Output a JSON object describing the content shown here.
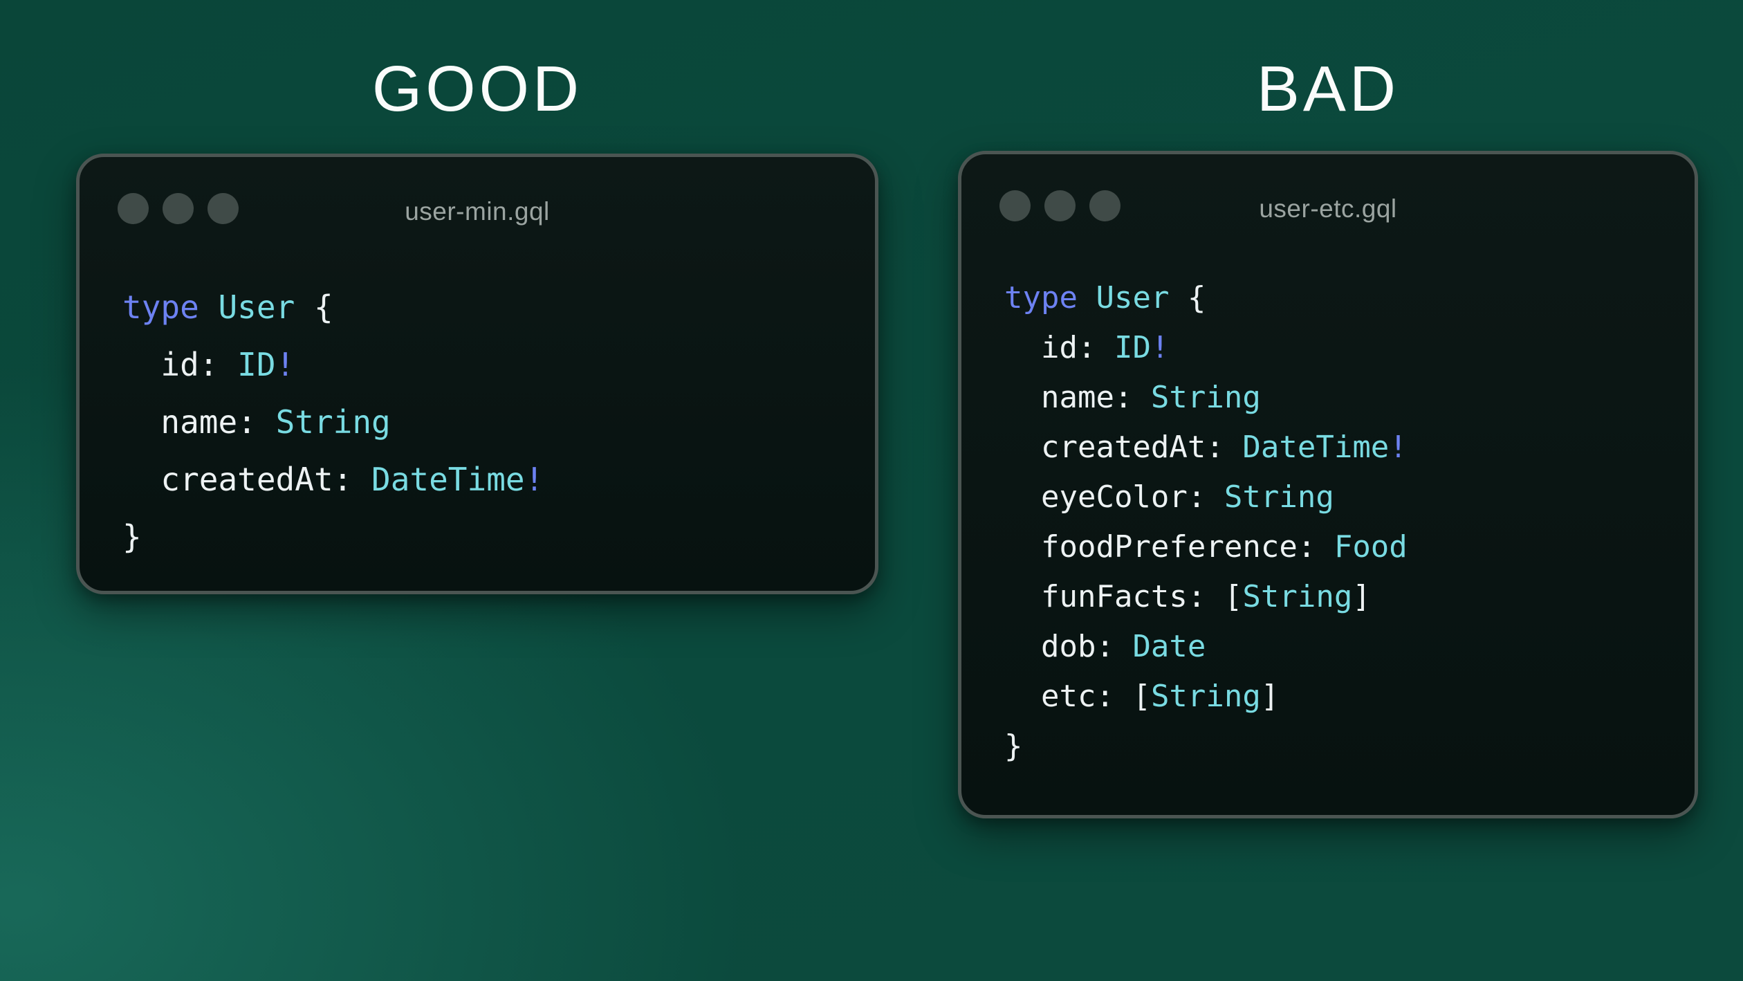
{
  "panels": [
    {
      "heading": "GOOD",
      "window": {
        "title": "user-min.gql",
        "code_lines": [
          [
            [
              "keyword",
              "type"
            ],
            [
              "plain",
              " "
            ],
            [
              "type_name",
              "User"
            ],
            [
              "plain",
              " {"
            ]
          ],
          [
            [
              "plain",
              "  id: "
            ],
            [
              "type_name",
              "ID"
            ],
            [
              "bang",
              "!"
            ]
          ],
          [
            [
              "plain",
              "  name: "
            ],
            [
              "type_name",
              "String"
            ]
          ],
          [
            [
              "plain",
              "  createdAt: "
            ],
            [
              "type_name",
              "DateTime"
            ],
            [
              "bang",
              "!"
            ]
          ],
          [
            [
              "plain",
              "}"
            ]
          ]
        ]
      }
    },
    {
      "heading": "BAD",
      "window": {
        "title": "user-etc.gql",
        "code_lines": [
          [
            [
              "keyword",
              "type"
            ],
            [
              "plain",
              " "
            ],
            [
              "type_name",
              "User"
            ],
            [
              "plain",
              " {"
            ]
          ],
          [
            [
              "plain",
              "  id: "
            ],
            [
              "type_name",
              "ID"
            ],
            [
              "bang",
              "!"
            ]
          ],
          [
            [
              "plain",
              "  name: "
            ],
            [
              "type_name",
              "String"
            ]
          ],
          [
            [
              "plain",
              "  createdAt: "
            ],
            [
              "type_name",
              "DateTime"
            ],
            [
              "bang",
              "!"
            ]
          ],
          [
            [
              "plain",
              "  eyeColor: "
            ],
            [
              "type_name",
              "String"
            ]
          ],
          [
            [
              "plain",
              "  foodPreference: "
            ],
            [
              "type_name",
              "Food"
            ]
          ],
          [
            [
              "plain",
              "  funFacts: "
            ],
            [
              "plain",
              "["
            ],
            [
              "type_name",
              "String"
            ],
            [
              "plain",
              "]"
            ]
          ],
          [
            [
              "plain",
              "  dob: "
            ],
            [
              "type_name",
              "Date"
            ]
          ],
          [
            [
              "plain",
              "  etc: "
            ],
            [
              "plain",
              "["
            ],
            [
              "type_name",
              "String"
            ],
            [
              "plain",
              "]"
            ]
          ],
          [
            [
              "plain",
              "}"
            ]
          ]
        ]
      }
    }
  ],
  "colors": {
    "keyword": "#6d82f2",
    "type_name": "#79dbe2",
    "plain": "#edf2f3",
    "bang": "#6d82f2",
    "heading_text": "#fafcfb",
    "title_text": "#9ba4a1",
    "dot": "#404b48",
    "window_bg_top": "#0d1816",
    "window_bg_bottom": "#071210",
    "window_border": "#4b5552",
    "bg_top": "#0a4639",
    "bg_mid": "#0b4a3d",
    "bg_bottom": "#0c4a3d",
    "bg_glow": "#2c968266"
  }
}
